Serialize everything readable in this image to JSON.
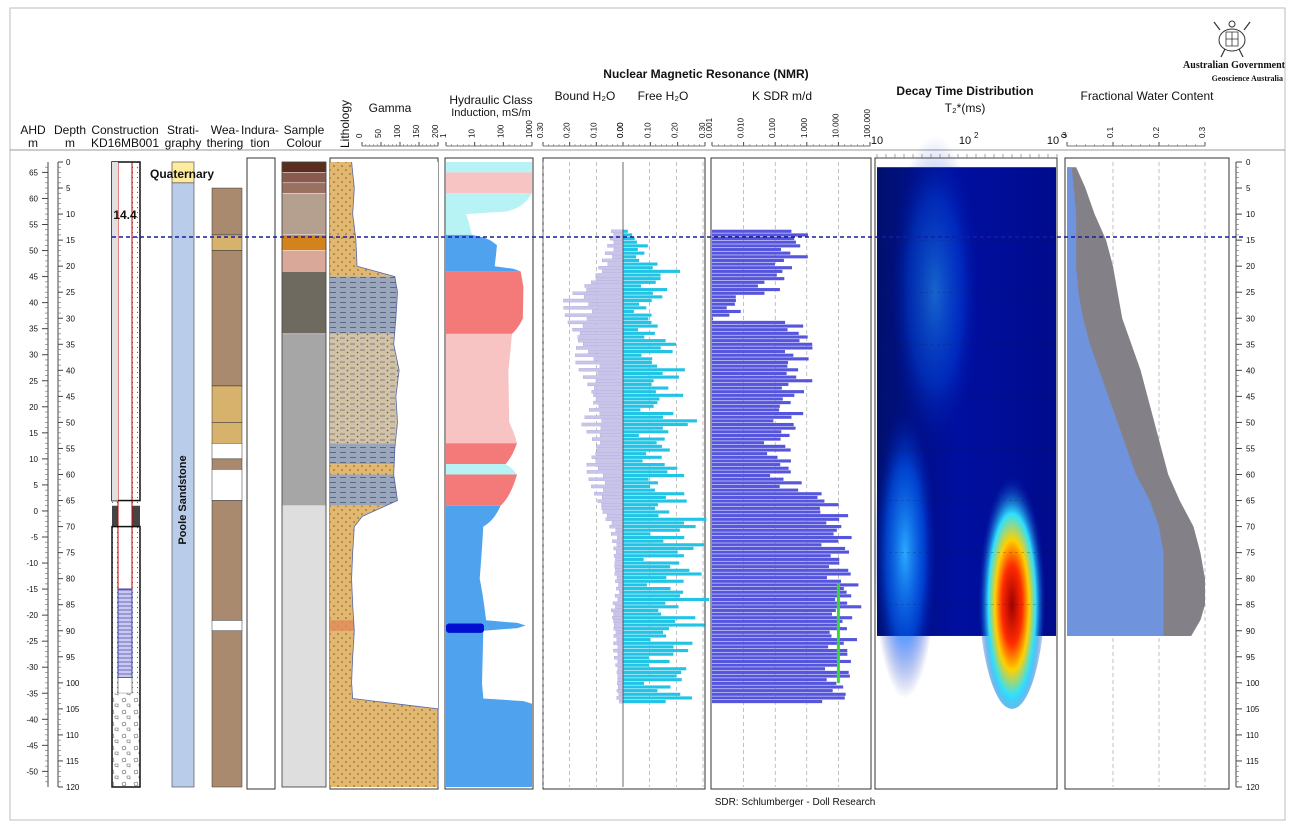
{
  "chart_data": {
    "type": "well-log",
    "headers": {
      "ahd": [
        "AHD",
        "m"
      ],
      "depth": [
        "Depth",
        "m"
      ],
      "construction": [
        "Construction",
        "KD16MB001"
      ],
      "stratigraphy": [
        "Strati-",
        "graphy"
      ],
      "weathering": [
        "Wea-",
        "thering"
      ],
      "induration": [
        "Indura-",
        "tion"
      ],
      "sample_colour": [
        "Sample",
        "Colour"
      ],
      "lithology": "Lithology",
      "gamma": "Gamma",
      "hydraulic": [
        "Hydraulic Class",
        "Induction, mS/m"
      ],
      "nmr_title": "Nuclear Magnetic Resonance (NMR)",
      "bound": "Bound H₂O",
      "free": "Free H₂O",
      "ksdr": "K SDR m/d",
      "decay": "Decay Time Distribution",
      "decay_sub": "T₂*(ms)",
      "fwc": "Fractional Water Content"
    },
    "depth_range": [
      0,
      120
    ],
    "depth_ticks": [
      0,
      5,
      10,
      15,
      20,
      25,
      30,
      35,
      40,
      45,
      50,
      55,
      60,
      65,
      70,
      75,
      80,
      85,
      90,
      95,
      100,
      105,
      110,
      115,
      120
    ],
    "ahd_ticks": [
      65,
      60,
      55,
      50,
      45,
      40,
      35,
      30,
      25,
      20,
      15,
      10,
      5,
      0,
      -5,
      -10,
      -15,
      -20,
      -25,
      -30,
      -35,
      -40,
      -45,
      -50
    ],
    "ahd_at_zero_depth": 67,
    "water_level_depth": 14.4,
    "water_level_label": "14.4",
    "strat_labels": [
      "Quaternary",
      "Poole Sandstone"
    ],
    "gamma_ticks": [
      "0",
      "50",
      "100",
      "150",
      "200"
    ],
    "induction_ticks": [
      "1",
      "10",
      "100",
      "1000"
    ],
    "bound_ticks": [
      "0.30",
      "0.20",
      "0.10",
      "0.00"
    ],
    "free_ticks": [
      "0.00",
      "0.10",
      "0.20",
      "0.30"
    ],
    "ksdr_ticks": [
      "0.001",
      "0.010",
      "0.100",
      "1.000",
      "10.000",
      "100.000"
    ],
    "decay_ticks": [
      "10",
      "10",
      "10"
    ],
    "decay_tick_exp": [
      "",
      "2",
      "3"
    ],
    "fwc_ticks": [
      "0",
      "0.1",
      "0.2",
      "0.3"
    ],
    "footer": "SDR: Schlumberger - Doll Research",
    "logo": [
      "Australian Government",
      "Geoscience Australia"
    ],
    "colors": {
      "weathering_brown": "#a98a6e",
      "weathering_tan": "#d6b26c",
      "strat_blue": "#b9cdea",
      "strat_yellow": "#ffeb9c",
      "water_line": "#1a1aa0",
      "hydro_blue": "#4fa3ee",
      "hydro_red": "#f47a7a",
      "hydro_pink": "#f7c3c3",
      "nmr_free": "#22c4e6",
      "nmr_bound": "#c9c4ea",
      "ksdr": "#5555dd",
      "fwc_total": "#838087",
      "fwc_free": "#6f93dc"
    },
    "gamma_series": {
      "depth": [
        0,
        5,
        10,
        15,
        20,
        22,
        25,
        30,
        35,
        40,
        45,
        50,
        55,
        60,
        65,
        68,
        70,
        75,
        80,
        85,
        90,
        95,
        100,
        103,
        105,
        110,
        120
      ],
      "value": [
        40,
        45,
        42,
        48,
        50,
        120,
        125,
        122,
        118,
        128,
        122,
        125,
        120,
        118,
        125,
        60,
        45,
        42,
        40,
        42,
        45,
        42,
        40,
        42,
        200,
        200,
        200
      ]
    },
    "weathering_units": [
      {
        "from": 5,
        "to": 14,
        "class": "brown"
      },
      {
        "from": 14,
        "to": 17,
        "class": "tan"
      },
      {
        "from": 17,
        "to": 43,
        "class": "brown"
      },
      {
        "from": 43,
        "to": 50,
        "class": "tan"
      },
      {
        "from": 50,
        "to": 54,
        "class": "tan"
      },
      {
        "from": 54,
        "to": 57,
        "class": "white"
      },
      {
        "from": 57,
        "to": 59,
        "class": "brown"
      },
      {
        "from": 59,
        "to": 65,
        "class": "white"
      },
      {
        "from": 65,
        "to": 88,
        "class": "brown"
      },
      {
        "from": 88,
        "to": 90,
        "class": "white"
      },
      {
        "from": 90,
        "to": 120,
        "class": "brown"
      }
    ],
    "sample_colour_units": [
      {
        "from": 0,
        "to": 2,
        "color": "#5a2d1e"
      },
      {
        "from": 2,
        "to": 4,
        "color": "#8a5a4e"
      },
      {
        "from": 4,
        "to": 6,
        "color": "#9a7060"
      },
      {
        "from": 6,
        "to": 14,
        "color": "#b5a090"
      },
      {
        "from": 14,
        "to": 17,
        "color": "#d4821c"
      },
      {
        "from": 17,
        "to": 21,
        "color": "#d9a898"
      },
      {
        "from": 21,
        "to": 33,
        "color": "#6e6a5f"
      },
      {
        "from": 33,
        "to": 66,
        "color": "#a6a6a6"
      },
      {
        "from": 66,
        "to": 120,
        "color": "#dedede"
      }
    ],
    "hydraulic_classes": [
      {
        "from": 0,
        "to": 2,
        "class": "cyan"
      },
      {
        "from": 2,
        "to": 6,
        "class": "pink"
      },
      {
        "from": 6,
        "to": 14,
        "class": "cyan"
      },
      {
        "from": 14,
        "to": 21,
        "class": "blue"
      },
      {
        "from": 21,
        "to": 33,
        "class": "red"
      },
      {
        "from": 33,
        "to": 54,
        "class": "pink"
      },
      {
        "from": 54,
        "to": 58,
        "class": "red"
      },
      {
        "from": 58,
        "to": 60,
        "class": "cyan"
      },
      {
        "from": 60,
        "to": 66,
        "class": "red"
      },
      {
        "from": 66,
        "to": 120,
        "class": "blue"
      }
    ],
    "induction_series": {
      "depth": [
        0,
        6,
        10,
        14,
        16,
        20,
        21,
        24,
        30,
        33,
        40,
        50,
        54,
        58,
        60,
        66,
        70,
        80,
        88,
        89,
        90,
        100,
        103,
        104,
        120
      ],
      "value": [
        1000,
        1000,
        5,
        8,
        60,
        50,
        400,
        500,
        480,
        200,
        150,
        160,
        300,
        120,
        300,
        80,
        20,
        15,
        25,
        600,
        20,
        18,
        20,
        1000,
        1000
      ]
    },
    "nmr_range": [
      13,
      104
    ],
    "free_water_envelope": {
      "depth": [
        14,
        18,
        22,
        26,
        30,
        34,
        38,
        42,
        46,
        50,
        54,
        58,
        62,
        66,
        70,
        74,
        78,
        82,
        86,
        90,
        94,
        98,
        102,
        104
      ],
      "value": [
        0.05,
        0.1,
        0.2,
        0.12,
        0.1,
        0.18,
        0.16,
        0.22,
        0.15,
        0.25,
        0.14,
        0.2,
        0.18,
        0.22,
        0.28,
        0.26,
        0.25,
        0.25,
        0.26,
        0.24,
        0.22,
        0.22,
        0.23,
        0.2
      ]
    },
    "bound_water_envelope": {
      "depth": [
        14,
        18,
        22,
        26,
        30,
        34,
        38,
        42,
        46,
        50,
        54,
        58,
        62,
        66,
        70,
        74,
        78,
        82,
        86,
        90,
        94,
        98,
        102,
        104
      ],
      "value": [
        0.04,
        0.06,
        0.1,
        0.19,
        0.18,
        0.16,
        0.15,
        0.12,
        0.1,
        0.13,
        0.09,
        0.12,
        0.1,
        0.08,
        0.04,
        0.03,
        0.03,
        0.02,
        0.04,
        0.03,
        0.03,
        0.02,
        0.02,
        0.02
      ]
    },
    "ksdr_envelope": {
      "depth": [
        14,
        18,
        22,
        26,
        30,
        34,
        38,
        42,
        46,
        50,
        54,
        58,
        62,
        66,
        70,
        74,
        78,
        82,
        86,
        90,
        94,
        98,
        102,
        104
      ],
      "value": [
        0.5,
        0.3,
        0.1,
        0.005,
        0.003,
        1,
        0.3,
        0.5,
        0.2,
        0.3,
        0.1,
        0.2,
        0.2,
        5,
        10,
        10,
        10,
        20,
        15,
        10,
        15,
        10,
        10,
        10
      ]
    },
    "ksdr_marker": {
      "from": 81,
      "to": 100,
      "value": 10
    },
    "decay_range": [
      1,
      91
    ],
    "fwc_total": {
      "depth": [
        1,
        5,
        10,
        15,
        20,
        25,
        30,
        35,
        40,
        45,
        50,
        55,
        60,
        65,
        70,
        75,
        80,
        85,
        88,
        91
      ],
      "value": [
        0.02,
        0.04,
        0.06,
        0.085,
        0.1,
        0.11,
        0.12,
        0.14,
        0.16,
        0.175,
        0.19,
        0.205,
        0.22,
        0.245,
        0.275,
        0.29,
        0.3,
        0.3,
        0.29,
        0.27
      ]
    },
    "fwc_free": {
      "depth": [
        1,
        5,
        10,
        15,
        20,
        25,
        30,
        35,
        40,
        45,
        50,
        55,
        60,
        65,
        70,
        75,
        80,
        85,
        88,
        91
      ],
      "value": [
        0.01,
        0.015,
        0.02,
        0.02,
        0.02,
        0.025,
        0.035,
        0.05,
        0.07,
        0.09,
        0.11,
        0.13,
        0.15,
        0.18,
        0.2,
        0.21,
        0.21,
        0.21,
        0.21,
        0.21
      ]
    }
  }
}
